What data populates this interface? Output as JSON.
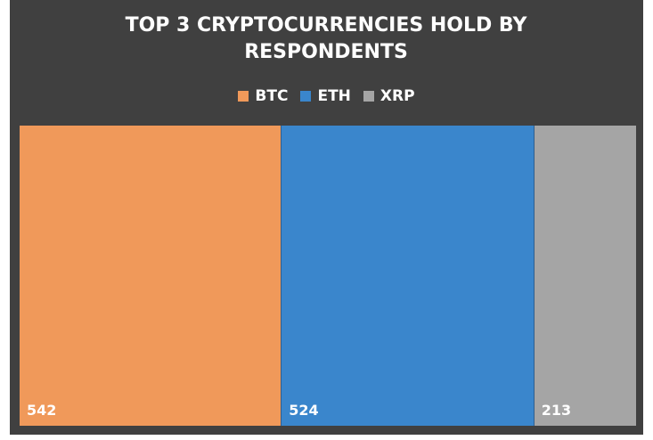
{
  "chart_data": {
    "type": "bar",
    "subtype": "100% stacked horizontal",
    "title": "TOP 3 CRYPTOCURRENCIES HOLD BY RESPONDENTS",
    "categories": [
      "BTC",
      "ETH",
      "XRP"
    ],
    "values": [
      542,
      524,
      213
    ],
    "colors": [
      "#F0995A",
      "#3A86CC",
      "#A5A5A5"
    ],
    "background": "#404040",
    "legend": "top",
    "data_labels": [
      "542",
      "524",
      "213"
    ],
    "grid": false
  }
}
